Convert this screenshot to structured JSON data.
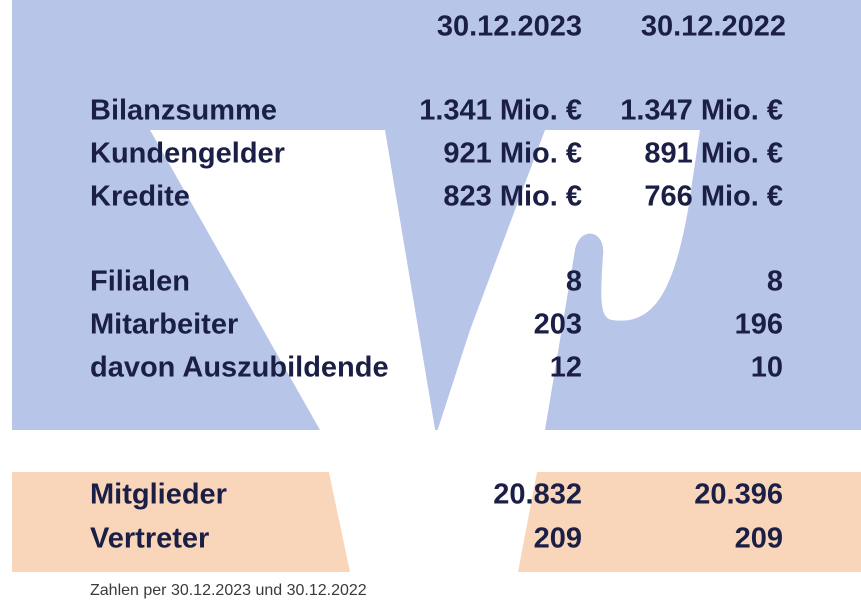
{
  "header": {
    "columns": [
      "30.12.2023",
      "30.12.2022"
    ]
  },
  "table": {
    "rows": [
      [
        "Bilanzsumme",
        "1.341 Mio. €",
        "1.347 Mio. €"
      ],
      [
        "Kundengelder",
        "921 Mio. €",
        "891 Mio. €"
      ],
      [
        "Kredite",
        "823 Mio. €",
        "766 Mio. €"
      ],
      [
        "Filialen",
        "8",
        "8"
      ],
      [
        "Mitarbeiter",
        "203",
        "196"
      ],
      [
        "davon Auszubildende",
        "12",
        "10"
      ],
      [
        "Mitglieder",
        "20.832",
        "20.396"
      ],
      [
        "Vertreter",
        "209",
        "209"
      ]
    ]
  },
  "footnote": "Zahlen per 30.12.2023 und 30.12.2022"
}
